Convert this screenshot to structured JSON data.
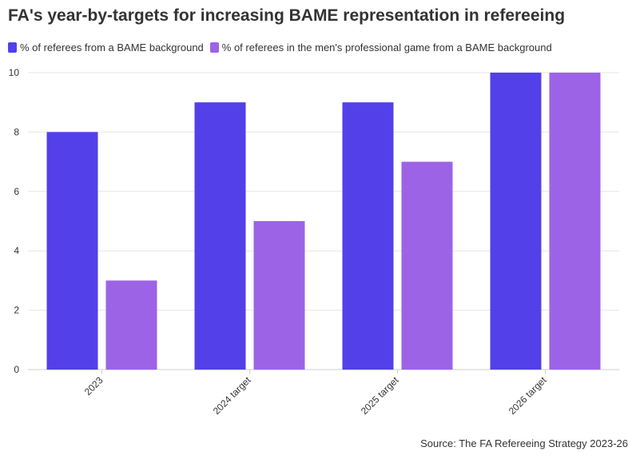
{
  "title": "FA's year-by-targets for increasing BAME representation in refereeing",
  "source": "Source: The FA Refereeing Strategy 2023-26",
  "chart_data": {
    "type": "bar",
    "categories": [
      "2023",
      "2024 target",
      "2025 target",
      "2026 target"
    ],
    "series": [
      {
        "name": "% of referees from a BAME background",
        "values": [
          8,
          9,
          9,
          10
        ],
        "color": "#5340e8"
      },
      {
        "name": "% of referees in the men's professional game from a BAME background",
        "values": [
          3,
          5,
          7,
          10
        ],
        "color": "#9d63e6"
      }
    ],
    "y_ticks": [
      0,
      2,
      4,
      6,
      8,
      10
    ],
    "ylim": [
      0,
      10
    ],
    "grid": true,
    "legend_position": "top-left"
  }
}
